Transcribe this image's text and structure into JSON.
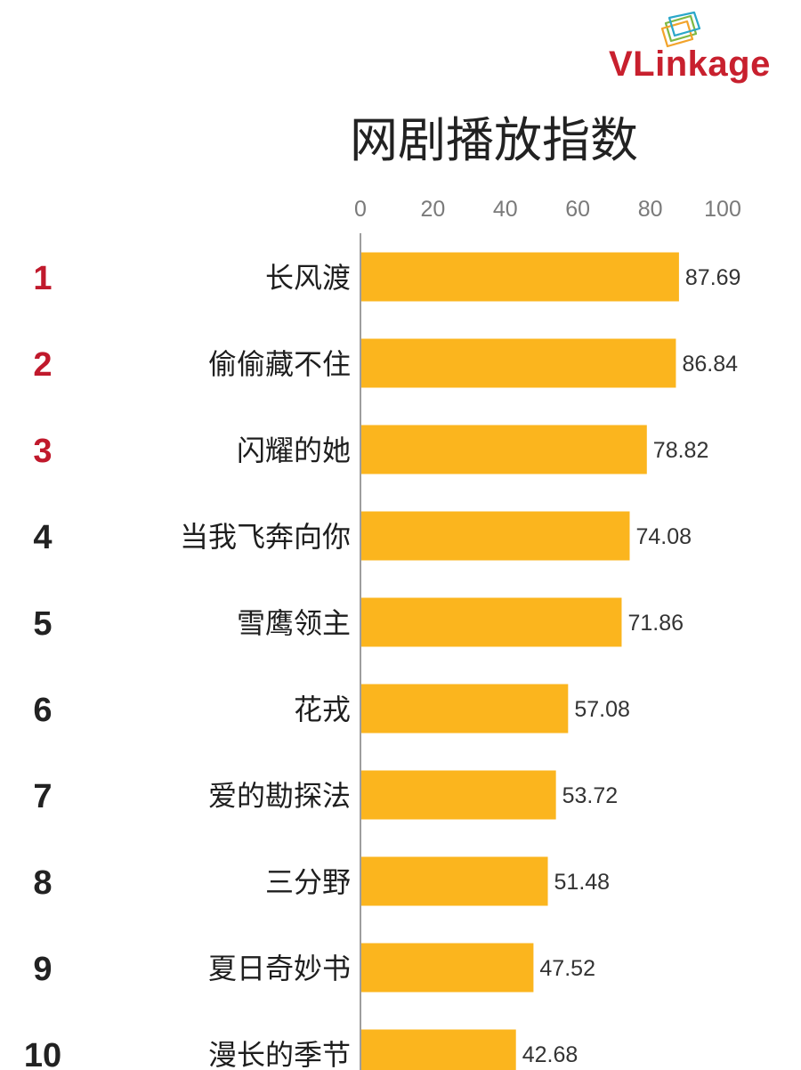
{
  "brand": {
    "name": "VLinkage",
    "color": "#c8202e"
  },
  "colors": {
    "bar": "#fbb51e",
    "rank_top": "#c0192c",
    "rank_other": "#222222",
    "axis": "#9e9e9e"
  },
  "chart_data": {
    "type": "bar",
    "orientation": "horizontal",
    "title": "网剧播放指数",
    "xlabel": "",
    "ylabel": "",
    "xlim": [
      0,
      100
    ],
    "x_ticks": [
      "0",
      "20",
      "40",
      "60",
      "80",
      "100"
    ],
    "x_axis_position": "top",
    "grid": false,
    "legend": "none",
    "ranks": [
      "1",
      "2",
      "3",
      "4",
      "5",
      "6",
      "7",
      "8",
      "9",
      "10"
    ],
    "categories": [
      "长风渡",
      "偷偷藏不住",
      "闪耀的她",
      "当我飞奔向你",
      "雪鹰领主",
      "花戎",
      "爱的勘探法",
      "三分野",
      "夏日奇妙书",
      "漫长的季节"
    ],
    "values": [
      87.69,
      86.84,
      78.82,
      74.08,
      71.86,
      57.08,
      53.72,
      51.48,
      47.52,
      42.68
    ],
    "data_labels": [
      "87.69",
      "86.84",
      "78.82",
      "74.08",
      "71.86",
      "57.08",
      "53.72",
      "51.48",
      "47.52",
      "42.68"
    ]
  }
}
